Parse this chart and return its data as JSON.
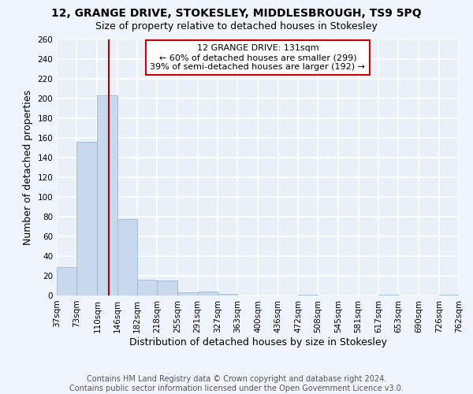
{
  "title": "12, GRANGE DRIVE, STOKESLEY, MIDDLESBROUGH, TS9 5PQ",
  "subtitle": "Size of property relative to detached houses in Stokesley",
  "xlabel": "Distribution of detached houses by size in Stokesley",
  "ylabel": "Number of detached properties",
  "bar_color": "#c8d9ee",
  "bar_edge_color": "#9ab8d8",
  "bg_color": "#eaf0f8",
  "grid_color": "#ffffff",
  "bin_edges": [
    37,
    73,
    110,
    146,
    182,
    218,
    255,
    291,
    327,
    363,
    400,
    436,
    472,
    508,
    545,
    581,
    617,
    653,
    690,
    726,
    762
  ],
  "bar_heights": [
    29,
    156,
    203,
    78,
    16,
    15,
    3,
    4,
    2,
    0,
    0,
    0,
    1,
    0,
    0,
    0,
    1,
    0,
    0,
    1
  ],
  "tick_labels": [
    "37sqm",
    "73sqm",
    "110sqm",
    "146sqm",
    "182sqm",
    "218sqm",
    "255sqm",
    "291sqm",
    "327sqm",
    "363sqm",
    "400sqm",
    "436sqm",
    "472sqm",
    "508sqm",
    "545sqm",
    "581sqm",
    "617sqm",
    "653sqm",
    "690sqm",
    "726sqm",
    "762sqm"
  ],
  "property_line_x": 131,
  "annotation_title": "12 GRANGE DRIVE: 131sqm",
  "annotation_line1": "← 60% of detached houses are smaller (299)",
  "annotation_line2": "39% of semi-detached houses are larger (192) →",
  "annotation_box_color": "#ffffff",
  "annotation_box_edge_color": "#cc0000",
  "vline_color": "#aa0000",
  "ylim": [
    0,
    260
  ],
  "yticks": [
    0,
    20,
    40,
    60,
    80,
    100,
    120,
    140,
    160,
    180,
    200,
    220,
    240,
    260
  ],
  "footer": "Contains HM Land Registry data © Crown copyright and database right 2024.\nContains public sector information licensed under the Open Government Licence v3.0.",
  "title_fontsize": 10,
  "subtitle_fontsize": 9,
  "footer_fontsize": 7,
  "ylabel_fontsize": 9,
  "xlabel_fontsize": 9,
  "tick_fontsize": 7.5,
  "annot_fontsize": 8
}
